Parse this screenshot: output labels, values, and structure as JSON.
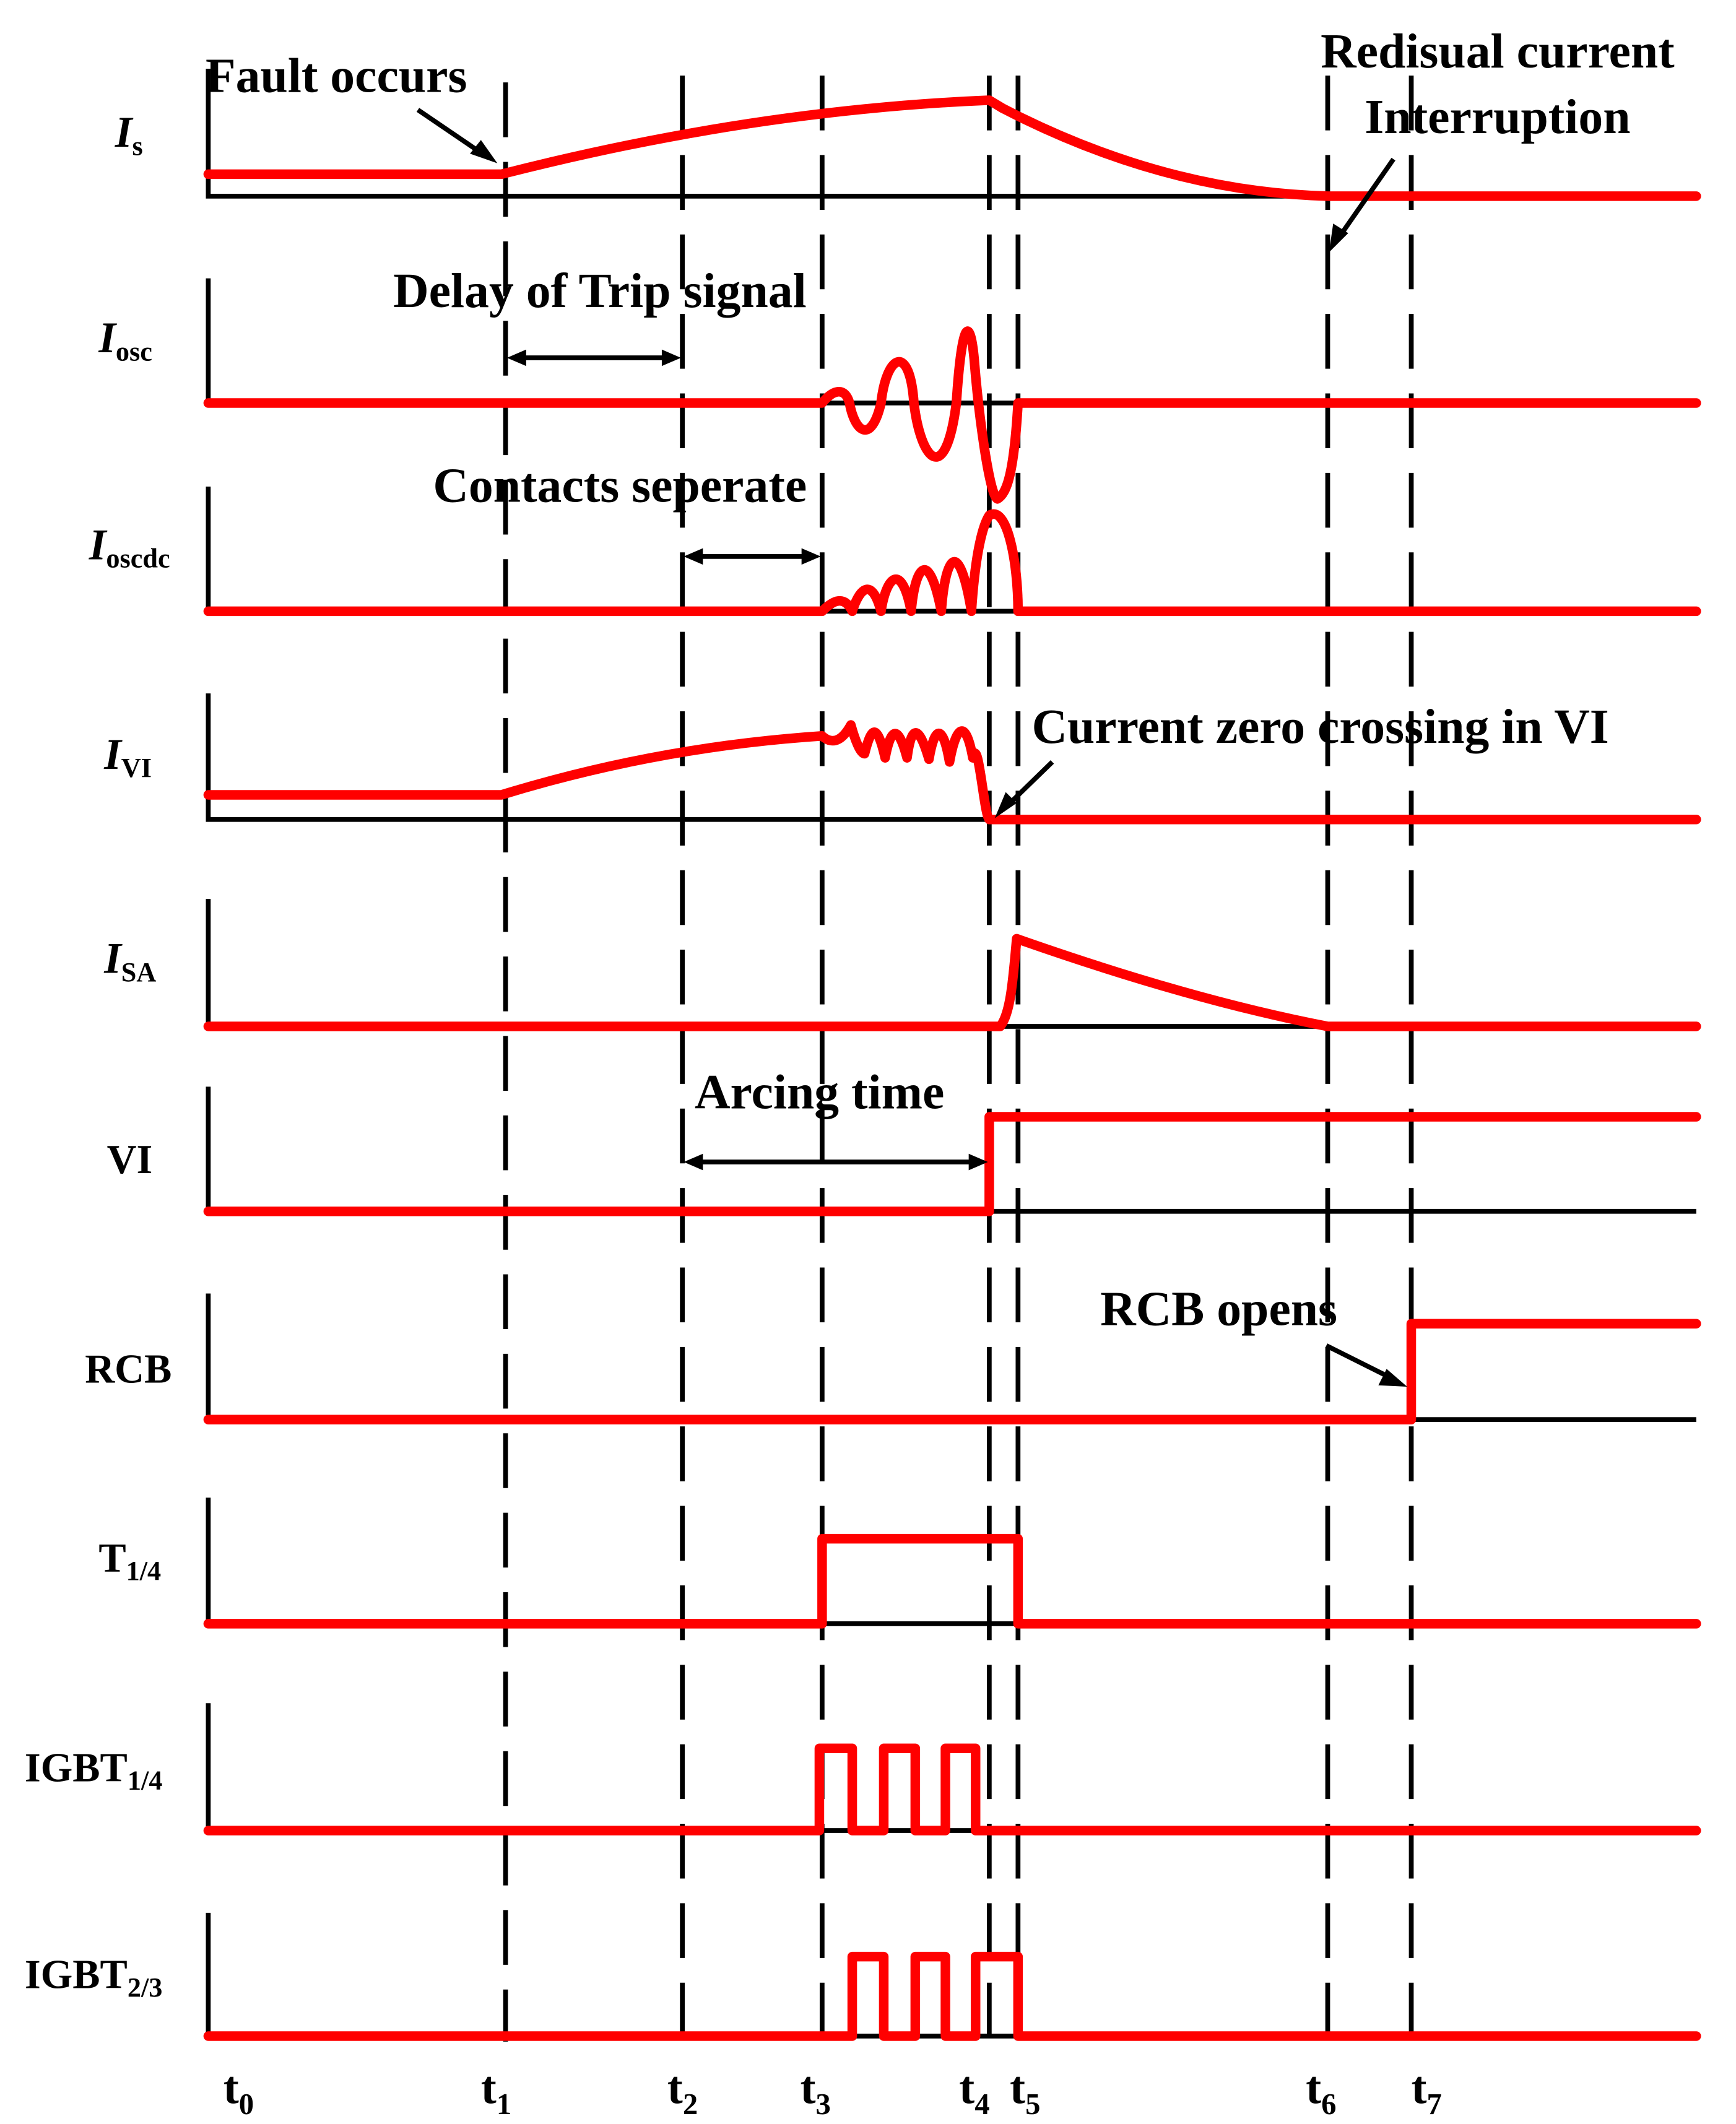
{
  "signals": [
    {
      "id": "is",
      "main": "I",
      "sub": "s",
      "italic": true
    },
    {
      "id": "iosc",
      "main": "I",
      "sub": "osc",
      "italic": true
    },
    {
      "id": "ioscdc",
      "main": "I",
      "sub": "oscdc",
      "italic": true
    },
    {
      "id": "ivi",
      "main": "I",
      "sub": "VI",
      "italic": true
    },
    {
      "id": "isa",
      "main": "I",
      "sub": "SA",
      "italic": true
    },
    {
      "id": "vi",
      "main": "VI",
      "sub": "",
      "italic": false
    },
    {
      "id": "rcb",
      "main": "RCB",
      "sub": "",
      "italic": false
    },
    {
      "id": "t14",
      "main": "T",
      "sub": "1/4",
      "italic": false
    },
    {
      "id": "igbt14",
      "main": "IGBT",
      "sub": "1/4",
      "italic": false
    },
    {
      "id": "igbt23",
      "main": "IGBT",
      "sub": "2/3",
      "italic": false
    }
  ],
  "time_ticks": [
    {
      "main": "t",
      "sub": "0"
    },
    {
      "main": "t",
      "sub": "1"
    },
    {
      "main": "t",
      "sub": "2"
    },
    {
      "main": "t",
      "sub": "3"
    },
    {
      "main": "t",
      "sub": "4"
    },
    {
      "main": "t",
      "sub": "5"
    },
    {
      "main": "t",
      "sub": "6"
    },
    {
      "main": "t",
      "sub": "7"
    }
  ],
  "annotations": {
    "fault_occurs": "Fault occurs",
    "residual_line1": "Redisual current",
    "residual_line2": "Interruption",
    "delay_trip": "Delay of Trip signal",
    "contacts_separate": "Contacts seperate",
    "current_zero": "Current zero crossing in VI",
    "arcing_time": "Arcing time",
    "rcb_opens": "RCB opens"
  },
  "colors": {
    "waveform": "#ff0000",
    "axis": "#000000"
  }
}
